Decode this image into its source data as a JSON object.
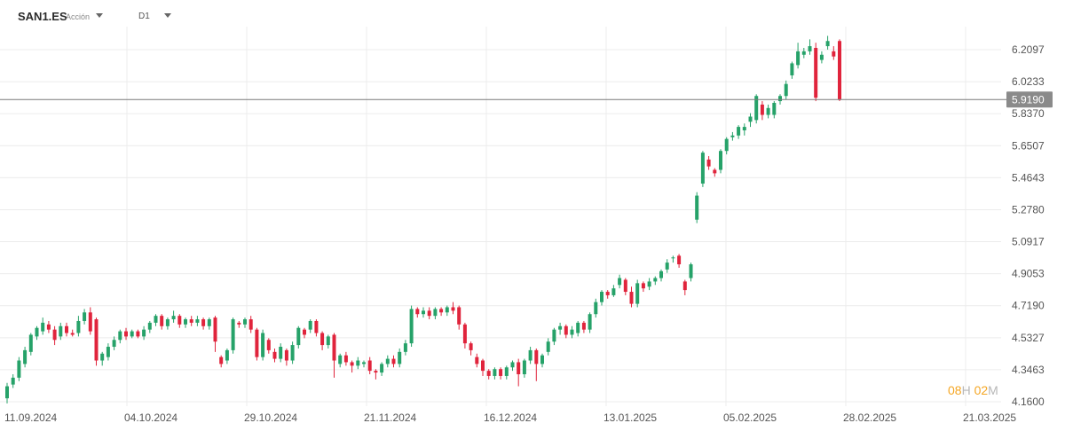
{
  "header": {
    "symbol": "SAN1.ES",
    "asset_type": "Acción",
    "timeframe": "D1"
  },
  "countdown": {
    "hours": "08",
    "hours_unit": "H",
    "minutes": "02",
    "minutes_unit": "M"
  },
  "colors": {
    "up": "#26a269",
    "down": "#e0243c",
    "price_line": "#7a7a7a",
    "grid": "#ececec",
    "countdown": "#f5a623"
  },
  "chart_data": {
    "type": "candlestick",
    "symbol": "SAN1.ES",
    "timeframe": "D1",
    "y_ticks": [
      "6.2097",
      "6.0233",
      "5.8370",
      "5.6507",
      "5.4643",
      "5.2780",
      "5.0917",
      "4.9053",
      "4.7190",
      "4.5327",
      "4.3463",
      "4.1600"
    ],
    "ylim": [
      4.16,
      6.2097
    ],
    "x_ticks": [
      "11.09.2024",
      "04.10.2024",
      "29.10.2024",
      "21.11.2024",
      "16.12.2024",
      "13.01.2025",
      "05.02.2025",
      "28.02.2025",
      "21.03.2025"
    ],
    "last_price": "5.9190",
    "grid": true,
    "candles": [
      [
        4.18,
        4.25,
        4.15,
        4.27
      ],
      [
        4.26,
        4.3,
        4.24,
        4.32
      ],
      [
        4.3,
        4.4,
        4.28,
        4.42
      ],
      [
        4.38,
        4.46,
        4.36,
        4.48
      ],
      [
        4.45,
        4.55,
        4.43,
        4.56
      ],
      [
        4.54,
        4.59,
        4.52,
        4.6
      ],
      [
        4.57,
        4.62,
        4.55,
        4.65
      ],
      [
        4.61,
        4.58,
        4.56,
        4.63
      ],
      [
        4.58,
        4.52,
        4.49,
        4.6
      ],
      [
        4.54,
        4.6,
        4.52,
        4.62
      ],
      [
        4.6,
        4.56,
        4.54,
        4.62
      ],
      [
        4.56,
        4.55,
        4.54,
        4.58
      ],
      [
        4.56,
        4.63,
        4.54,
        4.66
      ],
      [
        4.63,
        4.68,
        4.61,
        4.7
      ],
      [
        4.68,
        4.57,
        4.55,
        4.71
      ],
      [
        4.64,
        4.4,
        4.37,
        4.65
      ],
      [
        4.4,
        4.44,
        4.37,
        4.45
      ],
      [
        4.42,
        4.48,
        4.4,
        4.5
      ],
      [
        4.48,
        4.52,
        4.46,
        4.54
      ],
      [
        4.52,
        4.57,
        4.5,
        4.58
      ],
      [
        4.57,
        4.54,
        4.52,
        4.59
      ],
      [
        4.54,
        4.57,
        4.53,
        4.58
      ],
      [
        4.57,
        4.54,
        4.53,
        4.58
      ],
      [
        4.54,
        4.58,
        4.52,
        4.6
      ],
      [
        4.58,
        4.62,
        4.56,
        4.63
      ],
      [
        4.62,
        4.66,
        4.6,
        4.67
      ],
      [
        4.66,
        4.6,
        4.58,
        4.67
      ],
      [
        4.6,
        4.64,
        4.58,
        4.65
      ],
      [
        4.64,
        4.66,
        4.62,
        4.69
      ],
      [
        4.66,
        4.61,
        4.59,
        4.67
      ],
      [
        4.61,
        4.64,
        4.59,
        4.65
      ],
      [
        4.64,
        4.62,
        4.6,
        4.66
      ],
      [
        4.62,
        4.64,
        4.6,
        4.66
      ],
      [
        4.64,
        4.6,
        4.58,
        4.65
      ],
      [
        4.6,
        4.64,
        4.58,
        4.65
      ],
      [
        4.65,
        4.51,
        4.45,
        4.66
      ],
      [
        4.42,
        4.38,
        4.36,
        4.43
      ],
      [
        4.4,
        4.46,
        4.38,
        4.47
      ],
      [
        4.46,
        4.64,
        4.44,
        4.65
      ],
      [
        4.62,
        4.61,
        4.59,
        4.63
      ],
      [
        4.61,
        4.64,
        4.59,
        4.65
      ],
      [
        4.64,
        4.58,
        4.56,
        4.66
      ],
      [
        4.58,
        4.42,
        4.4,
        4.59
      ],
      [
        4.42,
        4.56,
        4.4,
        4.58
      ],
      [
        4.52,
        4.46,
        4.44,
        4.53
      ],
      [
        4.45,
        4.41,
        4.39,
        4.47
      ],
      [
        4.41,
        4.48,
        4.39,
        4.5
      ],
      [
        4.46,
        4.4,
        4.37,
        4.47
      ],
      [
        4.4,
        4.49,
        4.38,
        4.51
      ],
      [
        4.49,
        4.59,
        4.47,
        4.6
      ],
      [
        4.58,
        4.55,
        4.53,
        4.59
      ],
      [
        4.58,
        4.63,
        4.56,
        4.64
      ],
      [
        4.63,
        4.56,
        4.54,
        4.64
      ],
      [
        4.56,
        4.49,
        4.46,
        4.57
      ],
      [
        4.49,
        4.54,
        4.47,
        4.55
      ],
      [
        4.55,
        4.4,
        4.3,
        4.56
      ],
      [
        4.38,
        4.43,
        4.36,
        4.44
      ],
      [
        4.43,
        4.39,
        4.37,
        4.45
      ],
      [
        4.39,
        4.37,
        4.33,
        4.4
      ],
      [
        4.37,
        4.4,
        4.35,
        4.42
      ],
      [
        4.38,
        4.39,
        4.36,
        4.4
      ],
      [
        4.4,
        4.34,
        4.32,
        4.42
      ],
      [
        4.34,
        4.33,
        4.29,
        4.35
      ],
      [
        4.33,
        4.38,
        4.31,
        4.39
      ],
      [
        4.38,
        4.41,
        4.36,
        4.43
      ],
      [
        4.41,
        4.38,
        4.36,
        4.43
      ],
      [
        4.38,
        4.45,
        4.36,
        4.47
      ],
      [
        4.45,
        4.5,
        4.43,
        4.52
      ],
      [
        4.5,
        4.7,
        4.48,
        4.72
      ],
      [
        4.7,
        4.67,
        4.65,
        4.71
      ],
      [
        4.67,
        4.69,
        4.65,
        4.71
      ],
      [
        4.69,
        4.66,
        4.64,
        4.71
      ],
      [
        4.66,
        4.7,
        4.64,
        4.71
      ],
      [
        4.7,
        4.68,
        4.66,
        4.71
      ],
      [
        4.68,
        4.71,
        4.66,
        4.72
      ],
      [
        4.71,
        4.69,
        4.67,
        4.74
      ],
      [
        4.71,
        4.61,
        4.58,
        4.72
      ],
      [
        4.61,
        4.5,
        4.47,
        4.62
      ],
      [
        4.5,
        4.46,
        4.43,
        4.51
      ],
      [
        4.42,
        4.38,
        4.36,
        4.44
      ],
      [
        4.4,
        4.34,
        4.31,
        4.41
      ],
      [
        4.34,
        4.31,
        4.29,
        4.35
      ],
      [
        4.31,
        4.35,
        4.29,
        4.36
      ],
      [
        4.35,
        4.31,
        4.29,
        4.36
      ],
      [
        4.31,
        4.36,
        4.29,
        4.37
      ],
      [
        4.36,
        4.39,
        4.34,
        4.4
      ],
      [
        4.39,
        4.32,
        4.25,
        4.41
      ],
      [
        4.32,
        4.4,
        4.3,
        4.41
      ],
      [
        4.4,
        4.46,
        4.38,
        4.48
      ],
      [
        4.46,
        4.38,
        4.28,
        4.47
      ],
      [
        4.38,
        4.43,
        4.36,
        4.44
      ],
      [
        4.45,
        4.51,
        4.43,
        4.53
      ],
      [
        4.51,
        4.58,
        4.49,
        4.59
      ],
      [
        4.58,
        4.6,
        4.55,
        4.62
      ],
      [
        4.6,
        4.55,
        4.53,
        4.61
      ],
      [
        4.55,
        4.58,
        4.53,
        4.6
      ],
      [
        4.56,
        4.62,
        4.54,
        4.63
      ],
      [
        4.62,
        4.58,
        4.56,
        4.63
      ],
      [
        4.58,
        4.67,
        4.56,
        4.68
      ],
      [
        4.67,
        4.74,
        4.65,
        4.76
      ],
      [
        4.74,
        4.8,
        4.72,
        4.81
      ],
      [
        4.8,
        4.78,
        4.76,
        4.81
      ],
      [
        4.78,
        4.82,
        4.77,
        4.84
      ],
      [
        4.84,
        4.88,
        4.82,
        4.9
      ],
      [
        4.87,
        4.8,
        4.78,
        4.88
      ],
      [
        4.8,
        4.73,
        4.71,
        4.83
      ],
      [
        4.73,
        4.85,
        4.71,
        4.87
      ],
      [
        4.85,
        4.82,
        4.8,
        4.86
      ],
      [
        4.83,
        4.86,
        4.81,
        4.88
      ],
      [
        4.86,
        4.88,
        4.84,
        4.89
      ],
      [
        4.88,
        4.92,
        4.86,
        4.93
      ],
      [
        4.93,
        4.97,
        4.91,
        4.99
      ],
      [
        5.0,
        5.0,
        4.97,
        5.01
      ],
      [
        5.01,
        4.96,
        4.94,
        5.02
      ],
      [
        4.86,
        4.81,
        4.78,
        4.87
      ],
      [
        4.88,
        4.96,
        4.86,
        4.97
      ],
      [
        5.22,
        5.36,
        5.2,
        5.38
      ],
      [
        5.43,
        5.61,
        5.41,
        5.62
      ],
      [
        5.57,
        5.53,
        5.51,
        5.59
      ],
      [
        5.51,
        5.49,
        5.47,
        5.52
      ],
      [
        5.51,
        5.62,
        5.49,
        5.63
      ],
      [
        5.62,
        5.69,
        5.6,
        5.7
      ],
      [
        5.7,
        5.71,
        5.68,
        5.73
      ],
      [
        5.71,
        5.76,
        5.69,
        5.77
      ],
      [
        5.74,
        5.76,
        5.71,
        5.78
      ],
      [
        5.79,
        5.82,
        5.76,
        5.84
      ],
      [
        5.8,
        5.94,
        5.78,
        5.95
      ],
      [
        5.89,
        5.83,
        5.8,
        5.91
      ],
      [
        5.83,
        5.87,
        5.81,
        5.89
      ],
      [
        5.83,
        5.9,
        5.81,
        5.91
      ],
      [
        5.91,
        5.94,
        5.89,
        5.95
      ],
      [
        5.94,
        6.01,
        5.92,
        6.03
      ],
      [
        6.06,
        6.13,
        6.04,
        6.14
      ],
      [
        6.12,
        6.2,
        6.1,
        6.25
      ],
      [
        6.18,
        6.2,
        6.16,
        6.22
      ],
      [
        6.2,
        6.23,
        6.18,
        6.27
      ],
      [
        6.22,
        5.93,
        5.91,
        6.25
      ],
      [
        6.15,
        6.18,
        6.13,
        6.2
      ],
      [
        6.23,
        6.26,
        6.21,
        6.29
      ],
      [
        6.2,
        6.17,
        6.15,
        6.23
      ],
      [
        6.26,
        5.92,
        5.91,
        6.27
      ]
    ]
  }
}
